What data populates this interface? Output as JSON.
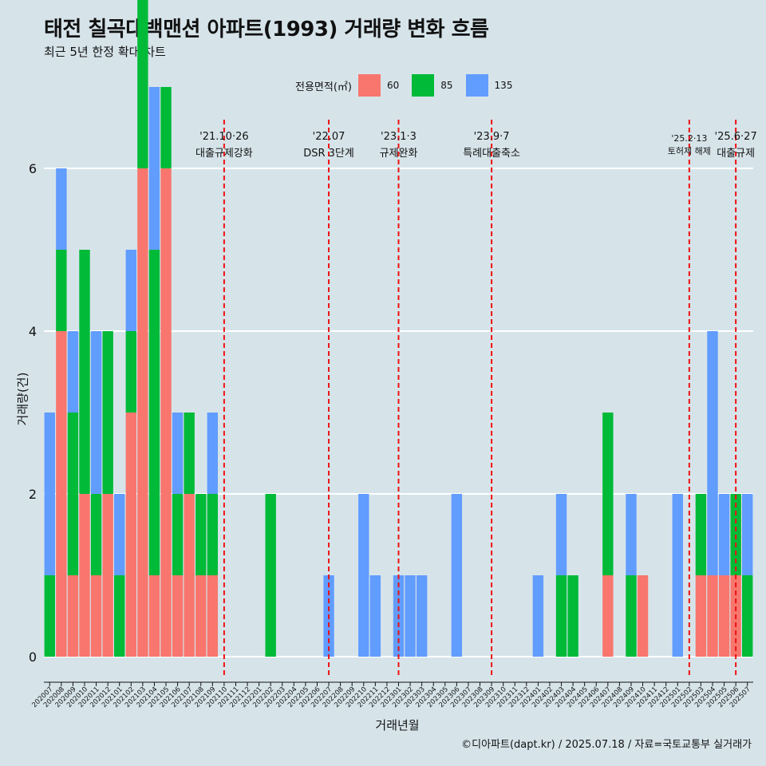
{
  "title": "태전 칠곡대백맨션 아파트(1993) 거래량 변화 흐름",
  "subtitle": "최근 5년 한정 확대 차트",
  "caption": "©디아파트(dapt.kr) / 2025.07.18 / 자료=국토교통부 실거래가",
  "colors": {
    "60": "#f8766d",
    "85": "#00ba38",
    "135": "#619cff",
    "event_line": "#ee1111",
    "background": "#d6e4ea",
    "grid": "#ffffff"
  },
  "chart_data": {
    "type": "bar",
    "title": "태전 칠곡대백맨션 아파트(1993) 거래량 변화 흐름",
    "subtitle": "최근 5년 한정 확대 차트",
    "xlabel": "거래년월",
    "ylabel": "거래량(건)",
    "ylim": [
      -0.25,
      6.4
    ],
    "yticks": [
      0,
      2,
      4,
      6
    ],
    "grid": "horizontal",
    "legend": {
      "title": "전용면적(㎡)",
      "position": "top",
      "entries": [
        "60",
        "85",
        "135"
      ]
    },
    "categories": [
      "202007",
      "202008",
      "202009",
      "202010",
      "202011",
      "202012",
      "202101",
      "202102",
      "202103",
      "202104",
      "202105",
      "202106",
      "202107",
      "202108",
      "202109",
      "202110",
      "202111",
      "202112",
      "202201",
      "202202",
      "202203",
      "202204",
      "202205",
      "202206",
      "202207",
      "202208",
      "202209",
      "202210",
      "202211",
      "202212",
      "202301",
      "202302",
      "202303",
      "202304",
      "202305",
      "202306",
      "202307",
      "202308",
      "202309",
      "202310",
      "202311",
      "202312",
      "202401",
      "202402",
      "202403",
      "202404",
      "202405",
      "202406",
      "202407",
      "202408",
      "202409",
      "202410",
      "202411",
      "202412",
      "202501",
      "202502",
      "202503",
      "202504",
      "202505",
      "202506",
      "202507"
    ],
    "series": [
      {
        "name": "60",
        "values": [
          0,
          4,
          1,
          2,
          1,
          2,
          0,
          3,
          6,
          1,
          6,
          1,
          2,
          1,
          1,
          0,
          0,
          0,
          0,
          0,
          0,
          0,
          0,
          0,
          0,
          0,
          0,
          0,
          0,
          0,
          0,
          0,
          0,
          0,
          0,
          0,
          0,
          0,
          0,
          0,
          0,
          0,
          0,
          0,
          0,
          0,
          0,
          0,
          1,
          0,
          0,
          1,
          0,
          0,
          0,
          0,
          1,
          1,
          1,
          1,
          0
        ],
        "extra": [
          0,
          0,
          0,
          0,
          1,
          1,
          1,
          0,
          0,
          1,
          0,
          0,
          0,
          0,
          0,
          0,
          0,
          0,
          0,
          0,
          0,
          0,
          0,
          0,
          0,
          0,
          0,
          0,
          0,
          0,
          0,
          0,
          0,
          0,
          0,
          0,
          0,
          0,
          0,
          0,
          0,
          0,
          0,
          0,
          1,
          0,
          0,
          0,
          0,
          0,
          0,
          0,
          0,
          0,
          0,
          0,
          0,
          0,
          0,
          0,
          0
        ]
      },
      {
        "name": "85",
        "values": [
          1,
          1,
          2,
          3,
          1,
          2,
          1,
          1,
          4,
          4,
          1,
          1,
          1,
          1,
          1,
          0,
          0,
          0,
          0,
          2,
          0,
          0,
          0,
          0,
          0,
          0,
          0,
          0,
          0,
          0,
          0,
          0,
          0,
          0,
          0,
          0,
          0,
          0,
          0,
          0,
          0,
          0,
          0,
          0,
          1,
          1,
          0,
          0,
          2,
          0,
          1,
          0,
          0,
          0,
          0,
          0,
          1,
          0,
          0,
          1,
          1
        ]
      },
      {
        "name": "135",
        "values": [
          2,
          1,
          1,
          0,
          2,
          0,
          1,
          1,
          1,
          2,
          0,
          1,
          0,
          0,
          1,
          0,
          0,
          0,
          0,
          0,
          0,
          0,
          0,
          0,
          1,
          0,
          0,
          2,
          1,
          0,
          1,
          1,
          1,
          0,
          0,
          2,
          0,
          0,
          0,
          0,
          0,
          0,
          1,
          0,
          1,
          0,
          0,
          0,
          0,
          0,
          1,
          0,
          0,
          0,
          2,
          0,
          0,
          3,
          1,
          0,
          1
        ]
      }
    ],
    "bars_note": "",
    "events": [
      {
        "date": "202110",
        "label1": "'21.10·26",
        "label2": "대출규제강화"
      },
      {
        "date": "202207",
        "label1": "'22.07",
        "label2": "DSR 3단계"
      },
      {
        "date": "202301",
        "label1": "'23.1·3",
        "label2": "규제완화"
      },
      {
        "date": "202309",
        "label1": "'23.9·7",
        "label2": "특례대출축소"
      },
      {
        "date": "202502",
        "label1": "'25.2·13",
        "label2": "토허제 해제"
      },
      {
        "date": "202506",
        "label1": "'25.6·27",
        "label2": "대출규제"
      }
    ]
  }
}
